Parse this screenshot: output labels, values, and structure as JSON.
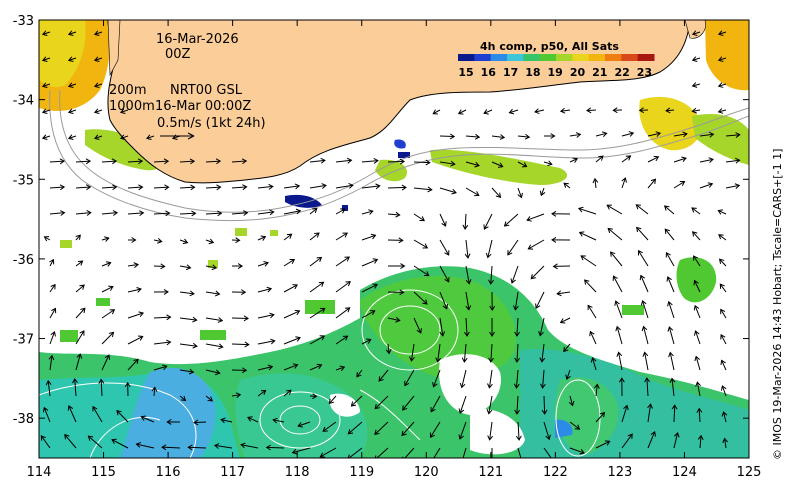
{
  "map": {
    "date_label": "16-Mar-2026",
    "time_label": "00Z",
    "depth_shallow": "200m",
    "depth_deep": "1000m",
    "product_label": "NRT00 GSL",
    "product_time": "16-Mar 00:00Z",
    "scale_label": "0.5m/s (1kt 24h)",
    "credit": "© IMOS 19-Mar-2026 14:43 Hobart; Tscale=CARS+[-1 1]",
    "lon_ticks": [
      "114",
      "115",
      "116",
      "117",
      "118",
      "119",
      "120",
      "121",
      "122",
      "123",
      "124",
      "125"
    ],
    "lat_ticks": [
      "-33",
      "-34",
      "-35",
      "-36",
      "-37",
      "-38"
    ],
    "lon_range": [
      114,
      125
    ],
    "lat_range": [
      -38.5,
      -33
    ]
  },
  "legend": {
    "title": "4h comp, p50, All Sats",
    "ticks": [
      "15",
      "16",
      "17",
      "18",
      "19",
      "20",
      "21",
      "22",
      "23"
    ],
    "colors": [
      "#0a1a8c",
      "#1e3fd0",
      "#2c8be6",
      "#3cc6d8",
      "#35c46a",
      "#4fc832",
      "#a6d62a",
      "#e8d51c",
      "#f2b50f",
      "#ee7d12",
      "#d8481a",
      "#a71810"
    ]
  },
  "colors": {
    "land": "#fbcd99",
    "coast": "#000000",
    "isobath": "#9a9a9a",
    "contour": "#ffffff",
    "vector": "#000000"
  }
}
